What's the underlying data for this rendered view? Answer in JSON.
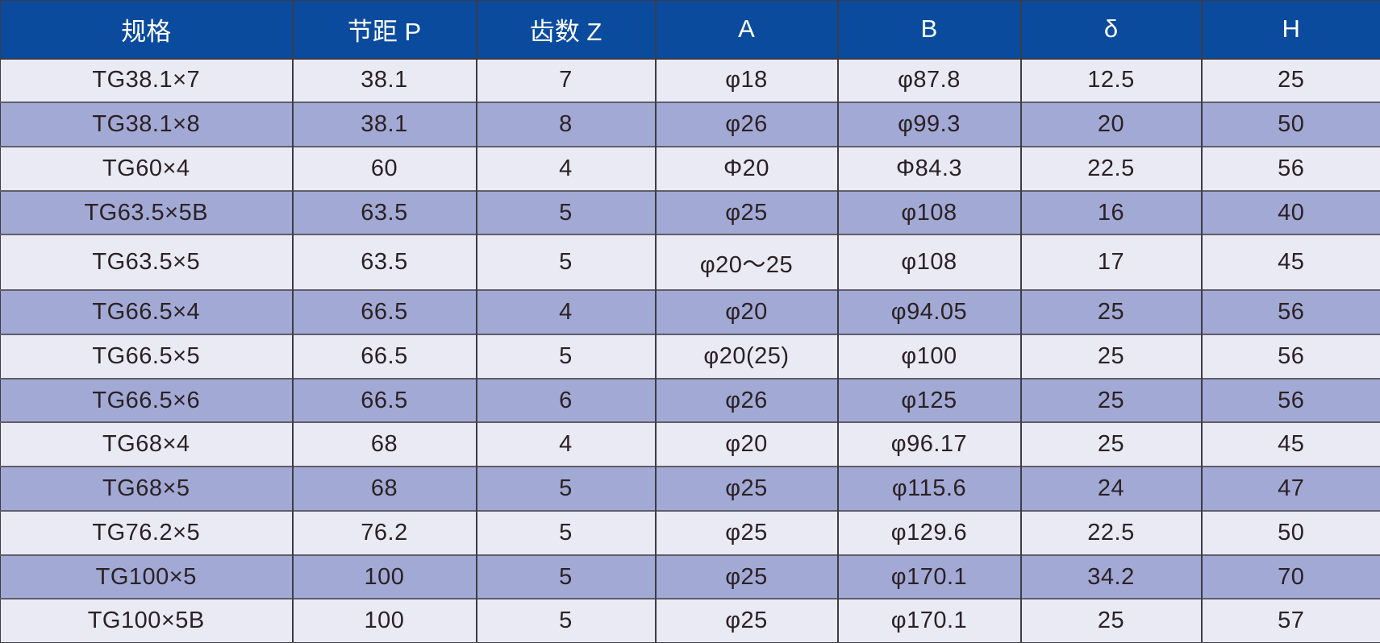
{
  "table": {
    "columns": [
      "规格",
      "节距 P",
      "齿数 Z",
      "A",
      "B",
      "δ",
      "H"
    ],
    "rows": [
      [
        "TG38.1×7",
        "38.1",
        "7",
        "φ18",
        "φ87.8",
        "12.5",
        "25"
      ],
      [
        "TG38.1×8",
        "38.1",
        "8",
        "φ26",
        "φ99.3",
        "20",
        "50"
      ],
      [
        "TG60×4",
        "60",
        "4",
        "Φ20",
        "Φ84.3",
        "22.5",
        "56"
      ],
      [
        "TG63.5×5B",
        "63.5",
        "5",
        "φ25",
        "φ108",
        "16",
        "40"
      ],
      [
        "TG63.5×5",
        "63.5",
        "5",
        "φ20～25",
        "φ108",
        "17",
        "45"
      ],
      [
        "TG66.5×4",
        "66.5",
        "4",
        "φ20",
        "φ94.05",
        "25",
        "56"
      ],
      [
        "TG66.5×5",
        "66.5",
        "5",
        "φ20(25)",
        "φ100",
        "25",
        "56"
      ],
      [
        "TG66.5×6",
        "66.5",
        "6",
        "φ26",
        "φ125",
        "25",
        "56"
      ],
      [
        "TG68×4",
        "68",
        "4",
        "φ20",
        "φ96.17",
        "25",
        "45"
      ],
      [
        "TG68×5",
        "68",
        "5",
        "φ25",
        "φ115.6",
        "24",
        "47"
      ],
      [
        "TG76.2×5",
        "76.2",
        "5",
        "φ25",
        "φ129.6",
        "22.5",
        "50"
      ],
      [
        "TG100×5",
        "100",
        "5",
        "φ25",
        "φ170.1",
        "34.2",
        "70"
      ],
      [
        "TG100×5B",
        "100",
        "5",
        "φ25",
        "φ170.1",
        "25",
        "57"
      ]
    ],
    "colors": {
      "header_bg": "#0a4b9e",
      "header_text": "#ffffff",
      "row_light": "#e9eaf4",
      "row_dark": "#a2a9d4",
      "grid_vertical": "#3c3c46",
      "grid_horizontal": "#5e5e6a",
      "cell_text": "#2b2125"
    }
  }
}
